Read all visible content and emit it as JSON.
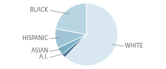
{
  "chart_data": {
    "type": "pie",
    "categories": [
      "WHITE",
      "A.I.",
      "ASIAN",
      "HISPANIC",
      "BLACK"
    ],
    "values": [
      62,
      2,
      4,
      10,
      22
    ],
    "colors": [
      "#d9e8f0",
      "#4d7d9a",
      "#7aafc4",
      "#a0c4d5",
      "#b8d5e2"
    ]
  }
}
